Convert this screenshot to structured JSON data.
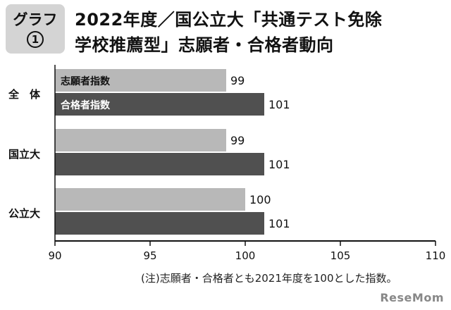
{
  "badge": {
    "top": "グラフ",
    "number": "1"
  },
  "title": {
    "line1": "2022年度／国公立大「共通テスト免除",
    "line2": "学校推薦型」志願者・合格者動向"
  },
  "chart_data": {
    "type": "bar",
    "orientation": "horizontal",
    "categories": [
      "全　体",
      "国立大",
      "公立大"
    ],
    "series": [
      {
        "name": "志願者指数",
        "values": [
          99,
          99,
          100
        ],
        "color": "#b8b8b8"
      },
      {
        "name": "合格者指数",
        "values": [
          101,
          101,
          101
        ],
        "color": "#505050"
      }
    ],
    "xlim": [
      90,
      110
    ],
    "xticks": [
      90,
      95,
      100,
      105,
      110
    ],
    "legend": "inside-first-group"
  },
  "footnote": "(注)志願者・合格者とも2021年度を100とした指数。",
  "logo": "ReseMom"
}
